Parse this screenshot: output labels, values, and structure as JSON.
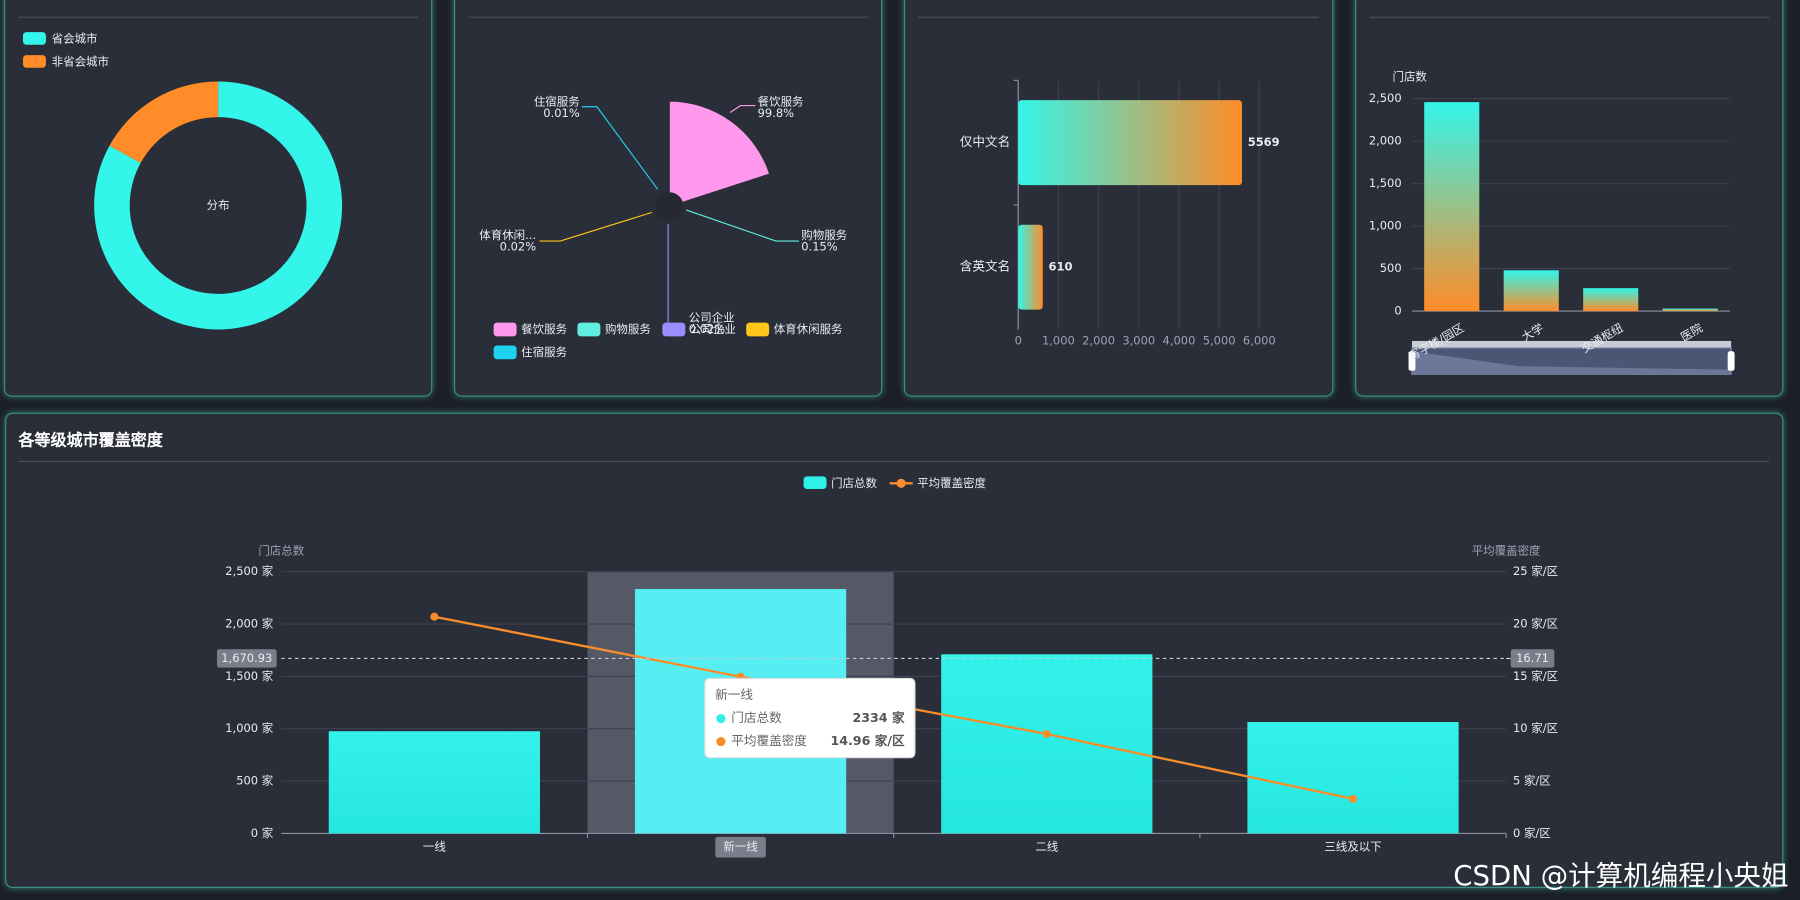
{
  "chart_data": [
    {
      "type": "donut",
      "center_label": "分布",
      "categories": [
        "省会城市",
        "非省会城市"
      ],
      "values": [
        83,
        17
      ],
      "colors": [
        "#33f5ea",
        "#ff8c28"
      ]
    },
    {
      "type": "rose",
      "categories": [
        "餐饮服务",
        "购物服务",
        "公司企业",
        "体育休闲服务",
        "住宿服务"
      ],
      "slice_labels": [
        "餐饮服务",
        "购物服务",
        "公司企业",
        "体育休闲...",
        "住宿服务"
      ],
      "values": [
        99.8,
        0.15,
        0.02,
        0.02,
        0.01
      ],
      "value_labels": [
        "99.8%",
        "0.15%",
        "0.02%",
        "0.02%",
        "0.01%"
      ],
      "colors": [
        "#ff99ee",
        "#5ff0e0",
        "#9b8cff",
        "#ffc61a",
        "#1fd3f0"
      ]
    },
    {
      "type": "hbar",
      "categories": [
        "仅中文名",
        "含英文名"
      ],
      "values": [
        5569,
        610
      ],
      "xlim": [
        0,
        6000
      ],
      "xticks": [
        0,
        {
          "value": 1000,
          "label": "1,000"
        },
        {
          "value": 2000,
          "label": "2,000"
        },
        {
          "value": 3000,
          "label": "3,000"
        },
        {
          "value": 4000,
          "label": "4,000"
        },
        {
          "value": 5000,
          "label": "5,000"
        },
        {
          "value": 6000,
          "label": "6,000"
        }
      ],
      "colors": [
        "#33f5ea",
        "#ff8c28"
      ],
      "grid": true
    },
    {
      "type": "bar",
      "y_label": "门店数",
      "categories": [
        "写字楼/园区",
        "大学",
        "交通枢纽",
        "医院"
      ],
      "values": [
        2460,
        480,
        270,
        30
      ],
      "ylim": [
        0,
        2500
      ],
      "yticks": [
        0,
        500,
        {
          "value": 1000,
          "label": "1,000"
        },
        {
          "value": 1500,
          "label": "1,500"
        },
        {
          "value": 2000,
          "label": "2,000"
        },
        {
          "value": 2500,
          "label": "2,500"
        }
      ],
      "colors": [
        "#33f5ea",
        "#ff8c28"
      ],
      "grid": true
    },
    {
      "type": "bar-line",
      "title": "各等级城市覆盖密度",
      "y_label": "门店总数",
      "y2_label": "平均覆盖密度",
      "categories": [
        "一线",
        "新一线",
        "二线",
        "三线及以下"
      ],
      "series": [
        {
          "name": "门店总数",
          "type": "bar",
          "color": "#2ef2e8",
          "values": [
            976,
            2334,
            1711,
            1064
          ],
          "value_labels": [
            null,
            "2334 家",
            null,
            null
          ]
        },
        {
          "name": "平均覆盖密度",
          "type": "line",
          "axis": "y2",
          "color": "#fa8c2a",
          "values": [
            20.7,
            14.96,
            9.5,
            3.3
          ],
          "value_labels": [
            null,
            "14.96 家/区",
            null,
            null
          ]
        }
      ],
      "ylim": [
        0,
        2500
      ],
      "yticks": [
        {
          "value": 0,
          "label": "0 家"
        },
        {
          "value": 500,
          "label": "500 家"
        },
        {
          "value": 1000,
          "label": "1,000 家"
        },
        {
          "value": 1500,
          "label": "1,500 家"
        },
        {
          "value": 2000,
          "label": "2,000 家"
        },
        {
          "value": 2500,
          "label": "2,500 家"
        }
      ],
      "y2lim": [
        0,
        25
      ],
      "y2ticks": [
        {
          "value": 0,
          "label": "0 家/区"
        },
        {
          "value": 5,
          "label": "5 家/区"
        },
        {
          "value": 10,
          "label": "10 家/区"
        },
        {
          "value": 15,
          "label": "15 家/区"
        },
        {
          "value": 20,
          "label": "20 家/区"
        },
        {
          "value": 25,
          "label": "25 家/区"
        }
      ],
      "average_line": {
        "value": 1670.93,
        "label": "1,670.93"
      },
      "average_line_y2": {
        "value": 16.71,
        "label": "16.71"
      },
      "highlight_index": 1,
      "grid": true
    }
  ],
  "watermark": "CSDN @计算机编程小央姐"
}
